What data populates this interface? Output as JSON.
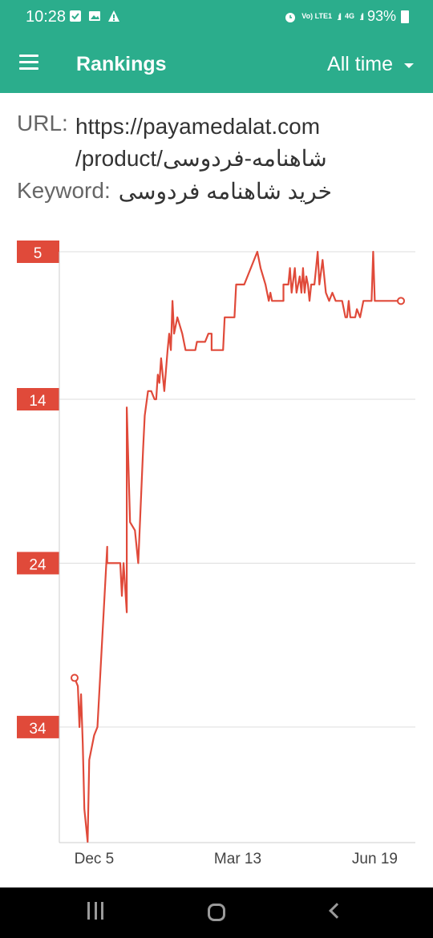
{
  "status_bar": {
    "time": "10:28",
    "network": "Vo) LTE1",
    "network_type": "4G",
    "battery": "93%",
    "icons": [
      "checkbox-icon",
      "image-icon",
      "warning-icon",
      "alarm-icon",
      "signal-icon",
      "battery-icon"
    ]
  },
  "app_bar": {
    "title": "Rankings",
    "period": "All time"
  },
  "info": {
    "url_label": "URL:",
    "url_line1": "https://payamedalat.com",
    "url_line2": "/product/شاهنامه-فردوسی",
    "keyword_label": "Keyword:",
    "keyword": "خرید شاهنامه فردوسی"
  },
  "colors": {
    "header": "#2bad8c",
    "line": "#e04a3a",
    "label_bg": "#e04a3a"
  },
  "chart_data": {
    "type": "line",
    "ylim": [
      5,
      41
    ],
    "y_inverted": true,
    "y_ticks": [
      5,
      14,
      24,
      34
    ],
    "x_tick_labels": [
      "Dec 5",
      "Mar 13",
      "Jun 19"
    ],
    "grid": true,
    "series": [
      {
        "values": [
          [
            0.0,
            31
          ],
          [
            0.01,
            31.5
          ],
          [
            0.015,
            34
          ],
          [
            0.02,
            32
          ],
          [
            0.025,
            35
          ],
          [
            0.03,
            39
          ],
          [
            0.04,
            41
          ],
          [
            0.045,
            36
          ],
          [
            0.06,
            34.5
          ],
          [
            0.07,
            34
          ],
          [
            0.1,
            23
          ],
          [
            0.1,
            24
          ],
          [
            0.14,
            24
          ],
          [
            0.145,
            26
          ],
          [
            0.15,
            24
          ],
          [
            0.16,
            27
          ],
          [
            0.16,
            14.5
          ],
          [
            0.17,
            21.5
          ],
          [
            0.185,
            22
          ],
          [
            0.195,
            24
          ],
          [
            0.21,
            17
          ],
          [
            0.215,
            15
          ],
          [
            0.225,
            13.5
          ],
          [
            0.235,
            13.5
          ],
          [
            0.245,
            14
          ],
          [
            0.25,
            14
          ],
          [
            0.255,
            12.5
          ],
          [
            0.26,
            13
          ],
          [
            0.265,
            11.5
          ],
          [
            0.275,
            13.5
          ],
          [
            0.285,
            11
          ],
          [
            0.29,
            10
          ],
          [
            0.295,
            11
          ],
          [
            0.3,
            8
          ],
          [
            0.305,
            10
          ],
          [
            0.315,
            9
          ],
          [
            0.33,
            10
          ],
          [
            0.34,
            11
          ],
          [
            0.37,
            11
          ],
          [
            0.375,
            10.5
          ],
          [
            0.4,
            10.5
          ],
          [
            0.41,
            10
          ],
          [
            0.42,
            10
          ],
          [
            0.42,
            11
          ],
          [
            0.455,
            11
          ],
          [
            0.46,
            9
          ],
          [
            0.49,
            9
          ],
          [
            0.495,
            7
          ],
          [
            0.52,
            7
          ],
          [
            0.54,
            6
          ],
          [
            0.56,
            5
          ],
          [
            0.57,
            6
          ],
          [
            0.585,
            7
          ],
          [
            0.595,
            8
          ],
          [
            0.6,
            7.5
          ],
          [
            0.605,
            8
          ],
          [
            0.64,
            8
          ],
          [
            0.64,
            7
          ],
          [
            0.655,
            7
          ],
          [
            0.66,
            6
          ],
          [
            0.665,
            7.5
          ],
          [
            0.675,
            6
          ],
          [
            0.68,
            7.5
          ],
          [
            0.69,
            6.5
          ],
          [
            0.695,
            7.5
          ],
          [
            0.7,
            6
          ],
          [
            0.705,
            7.5
          ],
          [
            0.71,
            6.5
          ],
          [
            0.715,
            7
          ],
          [
            0.72,
            8
          ],
          [
            0.725,
            7
          ],
          [
            0.735,
            7
          ],
          [
            0.74,
            6
          ],
          [
            0.745,
            5
          ],
          [
            0.75,
            7
          ],
          [
            0.76,
            5.5
          ],
          [
            0.77,
            7.5
          ],
          [
            0.78,
            8
          ],
          [
            0.79,
            7.5
          ],
          [
            0.8,
            8
          ],
          [
            0.82,
            8
          ],
          [
            0.83,
            9
          ],
          [
            0.835,
            9
          ],
          [
            0.84,
            8
          ],
          [
            0.845,
            9
          ],
          [
            0.86,
            9
          ],
          [
            0.865,
            8.5
          ],
          [
            0.875,
            9
          ],
          [
            0.885,
            8
          ],
          [
            0.91,
            8
          ],
          [
            0.915,
            5
          ],
          [
            0.92,
            8
          ],
          [
            1.0,
            8
          ]
        ]
      }
    ]
  }
}
